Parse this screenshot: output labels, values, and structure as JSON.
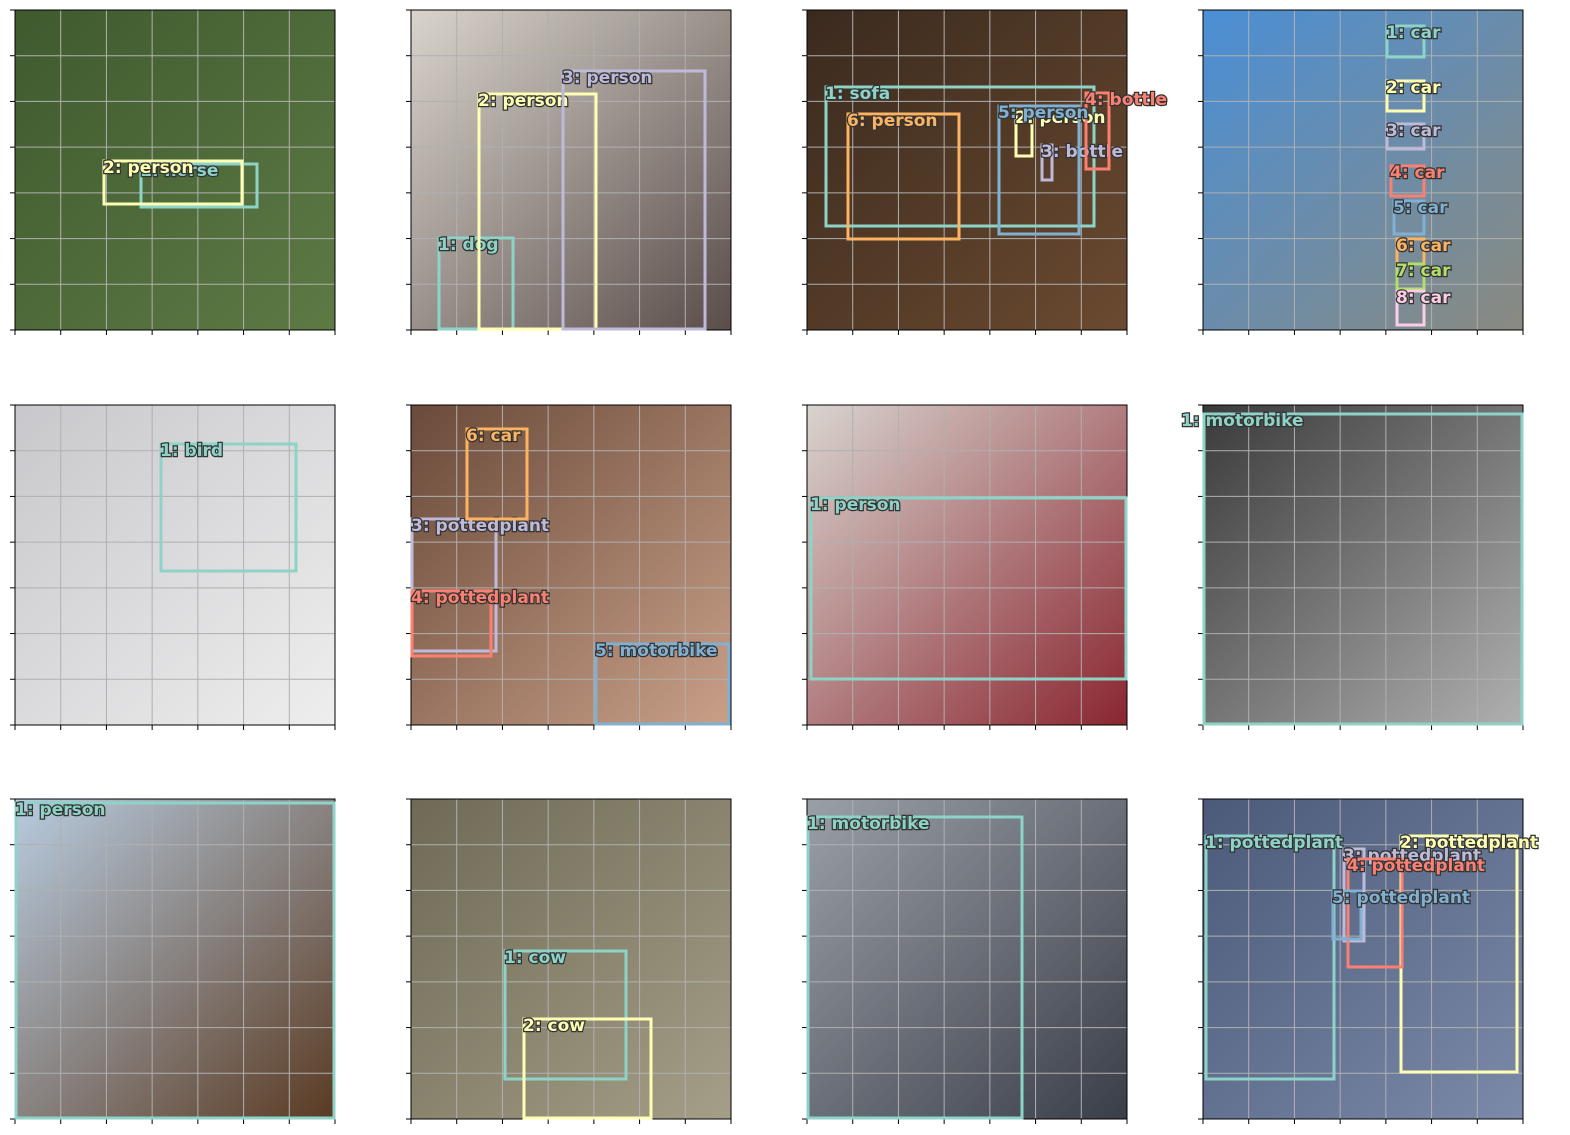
{
  "panels": [
    {
      "labels": [
        {
          "text": "1: horse",
          "color": "#8dd3c7"
        },
        {
          "text": "2: person",
          "color": "#ffffb3"
        }
      ]
    },
    {
      "labels": [
        {
          "text": "1: dog",
          "color": "#8dd3c7"
        },
        {
          "text": "2: person",
          "color": "#ffffb3"
        },
        {
          "text": "3: person",
          "color": "#bebada"
        }
      ]
    },
    {
      "labels": [
        {
          "text": "1: sofa",
          "color": "#8dd3c7"
        },
        {
          "text": "2: person",
          "color": "#ffffb3"
        },
        {
          "text": "3: bottle",
          "color": "#bebada"
        },
        {
          "text": "4: bottle",
          "color": "#fb8072"
        },
        {
          "text": "5: person",
          "color": "#80b1d3"
        },
        {
          "text": "6: person",
          "color": "#fdb462"
        }
      ]
    },
    {
      "labels": [
        {
          "text": "1: car",
          "color": "#8dd3c7"
        },
        {
          "text": "2: car",
          "color": "#ffffb3"
        },
        {
          "text": "3: car",
          "color": "#bebada"
        },
        {
          "text": "4: car",
          "color": "#fb8072"
        },
        {
          "text": "5: car",
          "color": "#80b1d3"
        },
        {
          "text": "6: car",
          "color": "#fdb462"
        },
        {
          "text": "7: car",
          "color": "#b3de69"
        },
        {
          "text": "8: car",
          "color": "#fccde5"
        }
      ]
    },
    {
      "labels": [
        {
          "text": "1: bird",
          "color": "#8dd3c7"
        }
      ]
    },
    {
      "labels": [
        {
          "text": "3: pottedplant",
          "color": "#bebada"
        },
        {
          "text": "4: pottedplant",
          "color": "#fb8072"
        },
        {
          "text": "5: motorbike",
          "color": "#80b1d3"
        },
        {
          "text": "6: car",
          "color": "#fdb462"
        }
      ]
    },
    {
      "labels": [
        {
          "text": "1: person",
          "color": "#8dd3c7"
        }
      ]
    },
    {
      "labels": [
        {
          "text": "1: motorbike",
          "color": "#8dd3c7"
        }
      ]
    },
    {
      "labels": [
        {
          "text": "1: person",
          "color": "#8dd3c7"
        }
      ]
    },
    {
      "labels": [
        {
          "text": "1: cow",
          "color": "#8dd3c7"
        },
        {
          "text": "2: cow",
          "color": "#ffffb3"
        }
      ]
    },
    {
      "labels": [
        {
          "text": "1: motorbike",
          "color": "#8dd3c7"
        }
      ]
    },
    {
      "labels": [
        {
          "text": "1: pottedplant",
          "color": "#8dd3c7"
        },
        {
          "text": "2: pottedplant",
          "color": "#ffffb3"
        },
        {
          "text": "3: pottedplant",
          "color": "#bebada"
        },
        {
          "text": "4: pottedplant",
          "color": "#fb8072"
        },
        {
          "text": "5: pottedplant",
          "color": "#80b1d3"
        }
      ]
    }
  ]
}
